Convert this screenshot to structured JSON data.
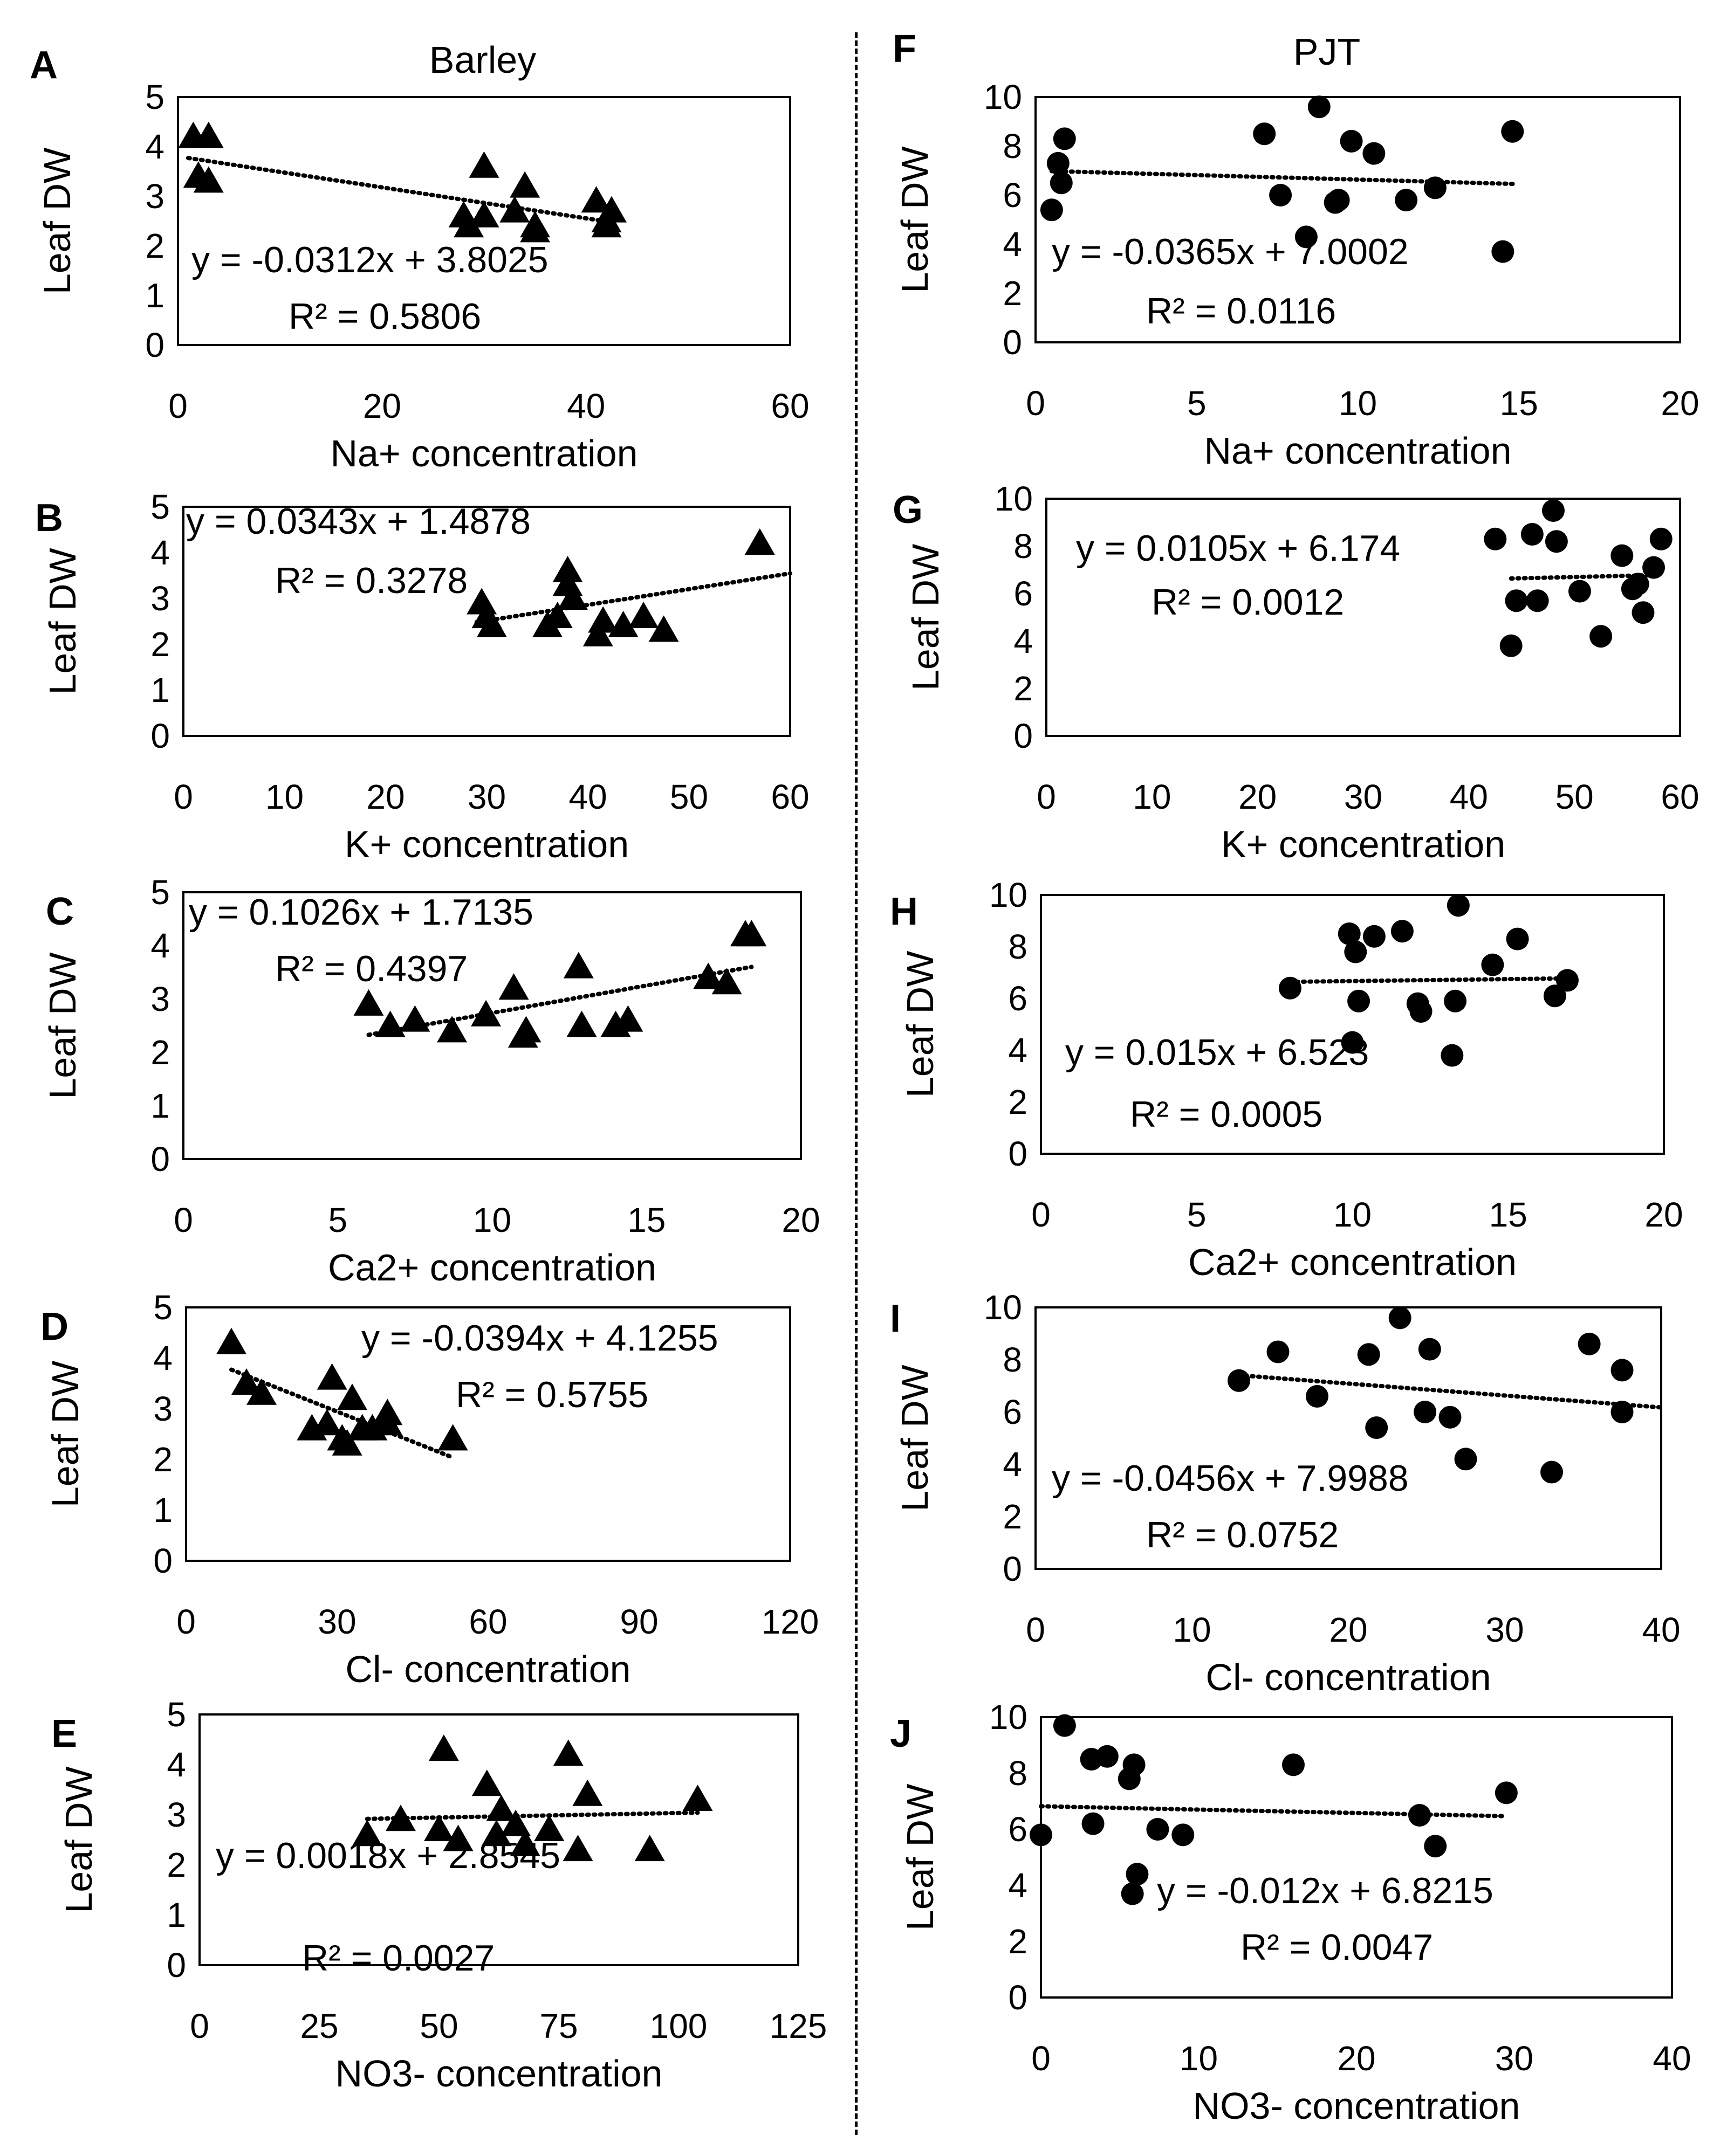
{
  "left_title": "Barley",
  "right_title": "PJT",
  "chart_data": [
    {
      "panel": "A",
      "type": "scatter",
      "marker": "triangle",
      "ylabel": "Leaf DW",
      "xlabel": "Na+ concentration",
      "xlim": [
        0,
        60
      ],
      "ylim": [
        0,
        5
      ],
      "xticks": [
        "0",
        "20",
        "40",
        "60"
      ],
      "yticks": [
        "0",
        "1",
        "2",
        "3",
        "4",
        "5"
      ],
      "x": [
        1.5,
        3,
        2,
        3,
        28,
        28.5,
        30,
        30,
        34,
        33,
        35,
        35,
        41,
        42,
        42.5,
        42
      ],
      "y": [
        4.2,
        4.2,
        3.4,
        3.3,
        2.6,
        2.4,
        2.6,
        3.6,
        3.2,
        2.7,
        2.3,
        2.4,
        2.9,
        2.5,
        2.7,
        2.4
      ],
      "equation": "y = -0.0312x + 3.8025",
      "r2": "R² = 0.5806",
      "trend": {
        "slope": -0.0312,
        "intercept": 3.8025,
        "xrange": [
          1,
          43
        ]
      },
      "grid": false
    },
    {
      "panel": "B",
      "type": "scatter",
      "marker": "triangle",
      "ylabel": "Leaf DW",
      "xlabel": "K+ concentration",
      "xlim": [
        0,
        60
      ],
      "ylim": [
        0,
        5
      ],
      "xticks": [
        "0",
        "10",
        "20",
        "30",
        "40",
        "50",
        "60"
      ],
      "yticks": [
        "0",
        "1",
        "2",
        "3",
        "4",
        "5"
      ],
      "x": [
        29.5,
        30,
        30.5,
        36,
        37,
        38,
        38,
        38.5,
        41,
        41.5,
        43.5,
        45.5,
        47.5,
        57
      ],
      "y": [
        2.9,
        2.6,
        2.4,
        2.4,
        2.6,
        3.6,
        3.3,
        3.0,
        2.2,
        2.5,
        2.4,
        2.6,
        2.3,
        4.2
      ],
      "equation": "y = 0.0343x + 1.4878",
      "r2": "R² = 0.3278",
      "trend": {
        "slope": 0.0343,
        "intercept": 1.4878,
        "xrange": [
          29,
          60
        ]
      },
      "grid": false
    },
    {
      "panel": "C",
      "type": "scatter",
      "marker": "triangle",
      "ylabel": "Leaf DW",
      "xlabel": "Ca2+ concentration",
      "xlim": [
        0,
        20
      ],
      "ylim": [
        0,
        5
      ],
      "xticks": [
        "0",
        "5",
        "10",
        "15",
        "20"
      ],
      "yticks": [
        "0",
        "1",
        "2",
        "3",
        "4",
        "5"
      ],
      "x": [
        6,
        6.7,
        7.5,
        8.7,
        9.8,
        10.7,
        11,
        11.1,
        12.8,
        12.9,
        14,
        14.4,
        17,
        17.6,
        18.2,
        18.4
      ],
      "y": [
        2.9,
        2.5,
        2.6,
        2.4,
        2.7,
        3.2,
        2.3,
        2.4,
        3.6,
        2.5,
        2.5,
        2.6,
        3.4,
        3.3,
        4.2,
        4.2
      ],
      "equation": "y = 0.1026x + 1.7135",
      "r2": "R² = 0.4397",
      "trend": {
        "slope": 0.1026,
        "intercept": 1.7135,
        "xrange": [
          6,
          18.4
        ]
      },
      "grid": false
    },
    {
      "panel": "D",
      "type": "scatter",
      "marker": "triangle",
      "ylabel": "Leaf DW",
      "xlabel": "Cl- concentration",
      "xlim": [
        0,
        120
      ],
      "ylim": [
        0,
        5
      ],
      "xticks": [
        "0",
        "30",
        "60",
        "90",
        "120"
      ],
      "yticks": [
        "0",
        "1",
        "2",
        "3",
        "4",
        "5"
      ],
      "x": [
        9,
        12,
        15,
        25,
        28,
        29,
        31,
        32,
        33,
        35,
        37,
        40,
        40,
        53
      ],
      "y": [
        4.3,
        3.5,
        3.3,
        2.6,
        2.7,
        3.6,
        2.4,
        2.3,
        3.2,
        2.6,
        2.6,
        2.9,
        2.7,
        2.4
      ],
      "equation": "y = -0.0394x + 4.1255",
      "r2": "R² = 0.5755",
      "trend": {
        "slope": -0.0394,
        "intercept": 4.1255,
        "xrange": [
          9,
          53
        ]
      },
      "grid": false
    },
    {
      "panel": "E",
      "type": "scatter",
      "marker": "triangle",
      "ylabel": "Leaf DW",
      "xlabel": "NO3- concentration",
      "xlim": [
        0,
        125
      ],
      "ylim": [
        0,
        5
      ],
      "xticks": [
        "0",
        "25",
        "50",
        "75",
        "100",
        "125"
      ],
      "yticks": [
        "0",
        "1",
        "2",
        "3",
        "4",
        "5"
      ],
      "x": [
        35,
        42,
        50,
        51,
        54,
        60,
        62,
        63,
        66,
        68,
        73,
        77,
        79,
        81,
        94,
        104
      ],
      "y": [
        2.6,
        2.9,
        2.7,
        4.3,
        2.5,
        3.6,
        2.6,
        3.1,
        2.8,
        2.4,
        2.7,
        4.2,
        2.3,
        3.4,
        2.3,
        3.3
      ],
      "equation": "y = 0.0018x + 2.8545",
      "r2": "R² = 0.0027",
      "trend": {
        "slope": 0.0018,
        "intercept": 2.8545,
        "xrange": [
          35,
          104
        ]
      },
      "grid": false
    },
    {
      "panel": "F",
      "type": "scatter",
      "marker": "circle",
      "ylabel": "Leaf DW",
      "xlabel": "Na+ concentration",
      "xlim": [
        0,
        20
      ],
      "ylim": [
        0,
        10
      ],
      "xticks": [
        "0",
        "5",
        "10",
        "15",
        "20"
      ],
      "yticks": [
        "0",
        "2",
        "4",
        "6",
        "8",
        "10"
      ],
      "x": [
        0.5,
        0.7,
        0.8,
        0.9,
        7.1,
        7.6,
        8.4,
        8.8,
        9.3,
        9.4,
        9.8,
        10.5,
        11.5,
        12.4,
        14.5,
        14.8
      ],
      "y": [
        5.4,
        7.3,
        6.5,
        8.3,
        8.5,
        6.0,
        4.3,
        9.6,
        5.7,
        5.8,
        8.2,
        7.7,
        5.8,
        6.3,
        3.7,
        8.6
      ],
      "equation": "y = -0.0365x + 7.0002",
      "r2": "R² = 0.0116",
      "trend": {
        "slope": -0.0365,
        "intercept": 7.0002,
        "xrange": [
          0.5,
          14.9
        ]
      },
      "grid": false
    },
    {
      "panel": "G",
      "type": "scatter",
      "marker": "circle",
      "ylabel": "Leaf DW",
      "xlabel": "K+ concentration",
      "xlim": [
        0,
        60
      ],
      "ylim": [
        0,
        10
      ],
      "xticks": [
        "0",
        "10",
        "20",
        "30",
        "40",
        "50",
        "60"
      ],
      "yticks": [
        "0",
        "2",
        "4",
        "6",
        "8",
        "10"
      ],
      "x": [
        42.5,
        44,
        44.5,
        46,
        46.5,
        48,
        48.3,
        50.5,
        52.5,
        54.5,
        55.5,
        56,
        56.5,
        57.5,
        58.2
      ],
      "y": [
        8.3,
        3.8,
        5.7,
        8.5,
        5.7,
        9.5,
        8.2,
        6.1,
        4.2,
        7.6,
        6.2,
        6.4,
        5.2,
        7.1,
        8.3
      ],
      "equation": "y = 0.0105x + 6.174",
      "r2": "R² = 0.0012",
      "trend": {
        "slope": 0.0105,
        "intercept": 6.174,
        "xrange": [
          44,
          58
        ]
      },
      "grid": false
    },
    {
      "panel": "H",
      "type": "scatter",
      "marker": "circle",
      "ylabel": "Leaf DW",
      "xlabel": "Ca2+ concentration",
      "xlim": [
        0,
        20
      ],
      "ylim": [
        0,
        10
      ],
      "xticks": [
        "0",
        "5",
        "10",
        "15",
        "20"
      ],
      "yticks": [
        "0",
        "2",
        "4",
        "6",
        "8",
        "10"
      ],
      "x": [
        8,
        9.9,
        10,
        10.1,
        10.2,
        10.7,
        11.6,
        12.1,
        12.2,
        13.2,
        13.3,
        13.4,
        14.5,
        15.3,
        16.5,
        16.9
      ],
      "y": [
        6.4,
        8.5,
        4.3,
        7.8,
        5.9,
        8.4,
        8.6,
        5.8,
        5.5,
        3.8,
        5.9,
        9.6,
        7.3,
        8.3,
        6.1,
        6.7
      ],
      "equation": "y = 0.015x + 6.523",
      "r2": "R² = 0.0005",
      "trend": {
        "slope": 0.015,
        "intercept": 6.523,
        "xrange": [
          8,
          17
        ]
      },
      "grid": false
    },
    {
      "panel": "I",
      "type": "scatter",
      "marker": "circle",
      "ylabel": "Leaf DW",
      "xlabel": "Cl- concentration",
      "xlim": [
        0,
        40
      ],
      "ylim": [
        0,
        10
      ],
      "xticks": [
        "0",
        "10",
        "20",
        "30",
        "40"
      ],
      "yticks": [
        "0",
        "2",
        "4",
        "6",
        "8",
        "10"
      ],
      "x": [
        13,
        15.5,
        18,
        21.3,
        21.8,
        23.3,
        24.9,
        25.2,
        26.5,
        27.5,
        33,
        35.4,
        37.5,
        37.5
      ],
      "y": [
        7.2,
        8.3,
        6.6,
        8.2,
        5.4,
        9.6,
        6.0,
        8.4,
        5.8,
        4.2,
        3.7,
        8.6,
        7.6,
        6.0
      ],
      "equation": "y = -0.0456x + 7.9988",
      "r2": "R² = 0.0752",
      "trend": {
        "slope": -0.0456,
        "intercept": 7.9988,
        "xrange": [
          13,
          40
        ]
      },
      "grid": false
    },
    {
      "panel": "J",
      "type": "scatter",
      "marker": "circle",
      "ylabel": "Leaf DW",
      "xlabel": "NO3- concentration",
      "xlim": [
        0,
        40
      ],
      "ylim": [
        0,
        10
      ],
      "xticks": [
        "0",
        "10",
        "20",
        "30",
        "40"
      ],
      "yticks": [
        "0",
        "2",
        "4",
        "6",
        "8",
        "10"
      ],
      "x": [
        0,
        1.5,
        3.2,
        3.3,
        4.2,
        5.6,
        5.8,
        5.9,
        6.1,
        7.4,
        9,
        16,
        24,
        25,
        29.5
      ],
      "y": [
        5.8,
        9.7,
        8.5,
        6.2,
        8.6,
        7.8,
        3.7,
        8.3,
        4.4,
        6.0,
        5.8,
        8.3,
        6.5,
        5.4,
        7.3
      ],
      "equation": "y = -0.012x + 6.8215",
      "r2": "R² = 0.0047",
      "trend": {
        "slope": -0.012,
        "intercept": 6.8215,
        "xrange": [
          0,
          29.5
        ]
      },
      "grid": false
    }
  ]
}
